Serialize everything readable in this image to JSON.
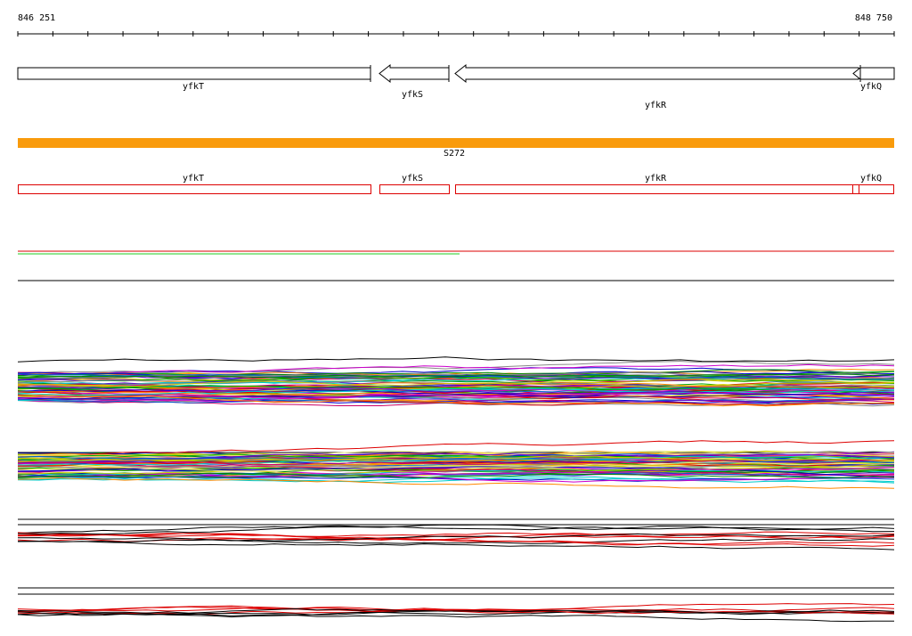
{
  "ruler": {
    "start": "846 251",
    "end": "848 750"
  },
  "genes": [
    "yfkT",
    "yfkS",
    "yfkR",
    "yfkQ"
  ],
  "region": {
    "label": "S272"
  },
  "features": [
    "yfkT",
    "yfkS",
    "yfkR",
    "yfkQ"
  ]
}
